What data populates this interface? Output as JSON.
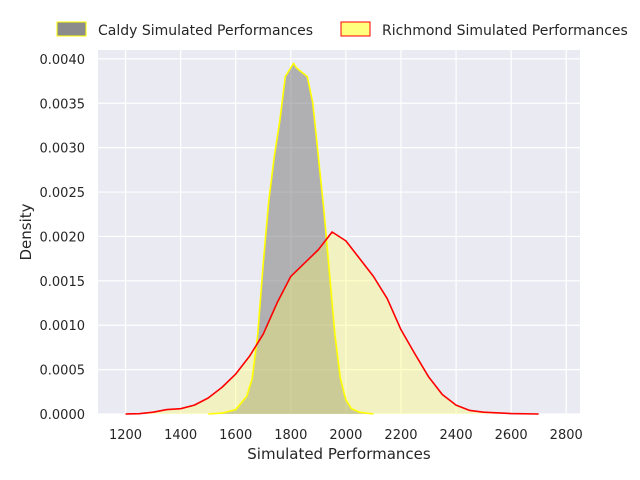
{
  "chart_data": {
    "type": "area",
    "title": "",
    "xlabel": "Simulated Performances",
    "ylabel": "Density",
    "xlim": [
      1100,
      2850
    ],
    "ylim": [
      0,
      0.0041
    ],
    "x_ticks": [
      1200,
      1400,
      1600,
      1800,
      2000,
      2200,
      2400,
      2600,
      2800
    ],
    "y_ticks": [
      0,
      0.0005,
      0.001,
      0.0015,
      0.002,
      0.0025,
      0.003,
      0.0035,
      0.004
    ],
    "x_tick_labels": [
      "1200",
      "1400",
      "1600",
      "1800",
      "2000",
      "2200",
      "2400",
      "2600",
      "2800"
    ],
    "y_tick_labels": [
      "0.0000",
      "0.0005",
      "0.0010",
      "0.0015",
      "0.0020",
      "0.0025",
      "0.0030",
      "0.0035",
      "0.0040"
    ],
    "grid": true,
    "legend_position": "top",
    "series": [
      {
        "name": "Caldy Simulated Performances",
        "fill_color": "#808080",
        "line_color": "#ffff00",
        "fill_opacity": 0.55,
        "points": [
          [
            1500,
            0
          ],
          [
            1550,
            1e-05
          ],
          [
            1600,
            5e-05
          ],
          [
            1640,
            0.0002
          ],
          [
            1660,
            0.0004
          ],
          [
            1680,
            0.0009
          ],
          [
            1700,
            0.0017
          ],
          [
            1720,
            0.0024
          ],
          [
            1740,
            0.0029
          ],
          [
            1760,
            0.0033
          ],
          [
            1780,
            0.0038
          ],
          [
            1800,
            0.0039
          ],
          [
            1810,
            0.00395
          ],
          [
            1820,
            0.0039
          ],
          [
            1840,
            0.00385
          ],
          [
            1860,
            0.0038
          ],
          [
            1880,
            0.0035
          ],
          [
            1900,
            0.0029
          ],
          [
            1920,
            0.0023
          ],
          [
            1940,
            0.0016
          ],
          [
            1960,
            0.0009
          ],
          [
            1980,
            0.0004
          ],
          [
            2000,
            0.00016
          ],
          [
            2020,
            6e-05
          ],
          [
            2050,
            2e-05
          ],
          [
            2100,
            0
          ]
        ]
      },
      {
        "name": "Richmond Simulated Performances",
        "fill_color": "#ffff66",
        "line_color": "#ff0000",
        "fill_opacity": 0.35,
        "points": [
          [
            1200,
            0
          ],
          [
            1250,
            3e-06
          ],
          [
            1300,
            2e-05
          ],
          [
            1350,
            5e-05
          ],
          [
            1400,
            6e-05
          ],
          [
            1450,
            0.0001
          ],
          [
            1500,
            0.00018
          ],
          [
            1550,
            0.0003
          ],
          [
            1600,
            0.00045
          ],
          [
            1650,
            0.00065
          ],
          [
            1700,
            0.0009
          ],
          [
            1750,
            0.00125
          ],
          [
            1800,
            0.00155
          ],
          [
            1850,
            0.0017
          ],
          [
            1900,
            0.00185
          ],
          [
            1950,
            0.00205
          ],
          [
            2000,
            0.00195
          ],
          [
            2050,
            0.00175
          ],
          [
            2100,
            0.00155
          ],
          [
            2150,
            0.0013
          ],
          [
            2200,
            0.00095
          ],
          [
            2250,
            0.00068
          ],
          [
            2300,
            0.00042
          ],
          [
            2350,
            0.00022
          ],
          [
            2400,
            0.0001
          ],
          [
            2450,
            4e-05
          ],
          [
            2500,
            2e-05
          ],
          [
            2600,
            5e-06
          ],
          [
            2700,
            0
          ]
        ]
      }
    ]
  }
}
